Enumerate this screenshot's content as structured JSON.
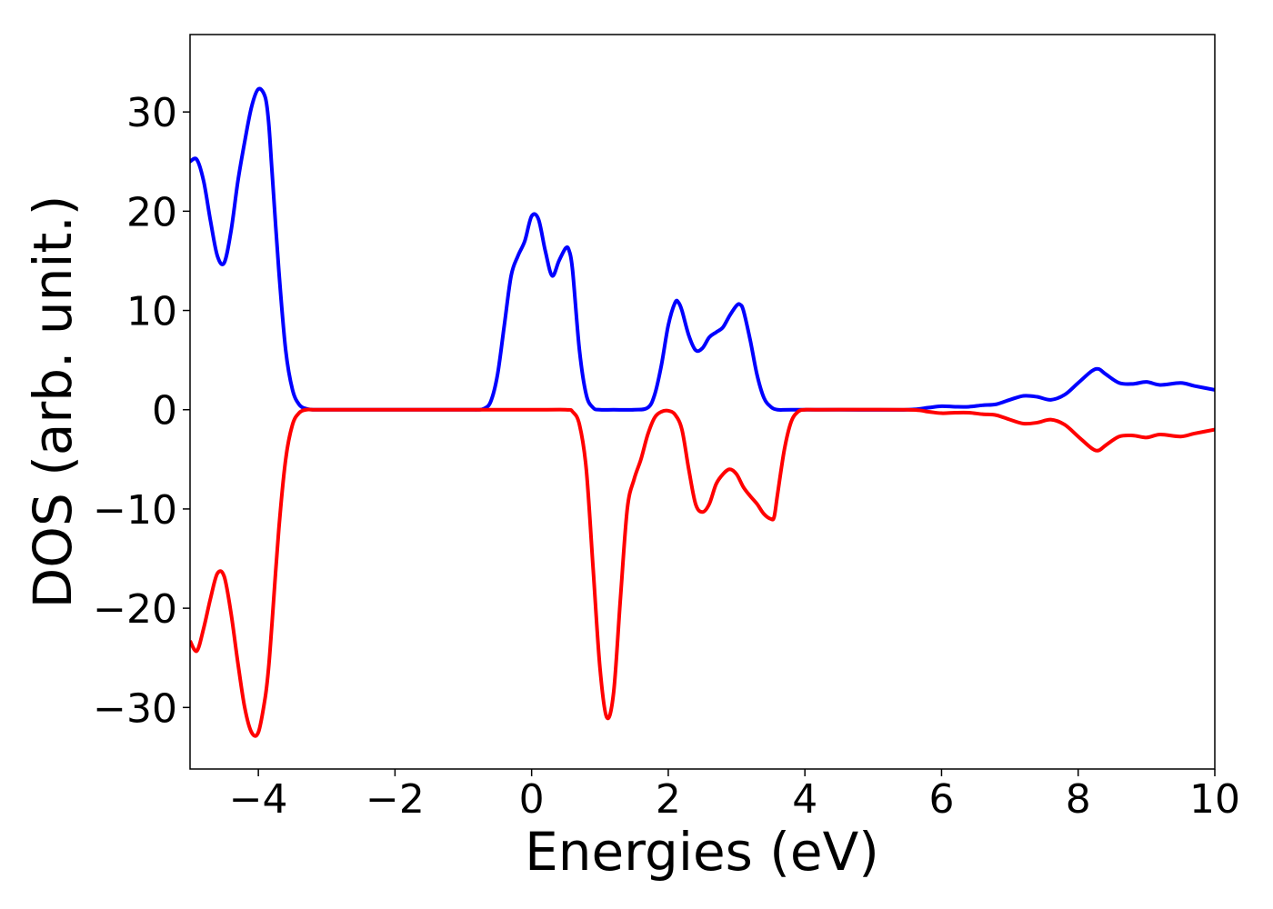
{
  "chart_data": {
    "type": "line",
    "title": "",
    "xlabel": "Energies (eV)",
    "ylabel": "DOS (arb. unit.)",
    "xlim": [
      -5,
      10
    ],
    "ylim": [
      -36.2,
      37.8
    ],
    "xticks": [
      -4,
      -2,
      0,
      2,
      4,
      6,
      8,
      10
    ],
    "xtick_labels": [
      "−4",
      "−2",
      "0",
      "2",
      "4",
      "6",
      "8",
      "10"
    ],
    "yticks": [
      30,
      20,
      10,
      0,
      -10,
      -20,
      -30
    ],
    "ytick_labels": [
      "30",
      "20",
      "10",
      "0",
      "−10",
      "−20",
      "−30"
    ],
    "grid": false,
    "legend": "none",
    "series": [
      {
        "color": "#0000ff",
        "x": [
          -5.0,
          -4.9,
          -4.8,
          -4.7,
          -4.6,
          -4.5,
          -4.4,
          -4.3,
          -4.2,
          -4.1,
          -4.0,
          -3.9,
          -3.85,
          -3.8,
          -3.7,
          -3.6,
          -3.5,
          -3.4,
          -3.3,
          -3.2,
          -3.1,
          -3.0,
          -2.5,
          -1.0,
          -0.8,
          -0.7,
          -0.6,
          -0.5,
          -0.4,
          -0.3,
          -0.2,
          -0.1,
          0.0,
          0.1,
          0.2,
          0.3,
          0.4,
          0.5,
          0.55,
          0.6,
          0.7,
          0.8,
          0.9,
          1.0,
          1.2,
          1.5,
          1.7,
          1.8,
          1.9,
          2.0,
          2.1,
          2.15,
          2.2,
          2.3,
          2.4,
          2.5,
          2.6,
          2.7,
          2.8,
          2.9,
          3.0,
          3.05,
          3.1,
          3.2,
          3.3,
          3.4,
          3.5,
          3.6,
          3.8,
          4.5,
          5.5,
          5.8,
          6.0,
          6.2,
          6.4,
          6.6,
          6.8,
          7.0,
          7.2,
          7.4,
          7.6,
          7.8,
          8.0,
          8.2,
          8.3,
          8.4,
          8.6,
          8.8,
          9.0,
          9.2,
          9.5,
          9.7,
          10.0
        ],
        "y": [
          25.0,
          25.2,
          23.0,
          19.0,
          15.5,
          14.8,
          18.0,
          23.0,
          27.0,
          30.5,
          32.3,
          31.5,
          29.0,
          24.0,
          14.0,
          6.0,
          2.0,
          0.5,
          0.1,
          0.0,
          0.0,
          0.0,
          0.0,
          0.0,
          0.0,
          0.1,
          0.8,
          3.5,
          8.5,
          13.5,
          15.5,
          17.0,
          19.5,
          19.2,
          16.0,
          13.5,
          15.0,
          16.3,
          16.0,
          14.0,
          6.0,
          1.5,
          0.2,
          0.0,
          0.0,
          0.0,
          0.2,
          1.5,
          4.5,
          8.5,
          10.8,
          10.8,
          10.0,
          7.5,
          6.0,
          6.2,
          7.3,
          7.8,
          8.3,
          9.5,
          10.5,
          10.6,
          10.0,
          7.0,
          3.5,
          1.2,
          0.3,
          0.0,
          0.0,
          0.0,
          0.0,
          0.2,
          0.35,
          0.3,
          0.3,
          0.45,
          0.55,
          1.0,
          1.4,
          1.3,
          1.0,
          1.5,
          2.7,
          3.9,
          4.1,
          3.6,
          2.7,
          2.6,
          2.8,
          2.5,
          2.7,
          2.4,
          2.0
        ]
      },
      {
        "color": "#ff0000",
        "x": [
          -5.0,
          -4.9,
          -4.8,
          -4.7,
          -4.6,
          -4.5,
          -4.4,
          -4.3,
          -4.2,
          -4.1,
          -4.0,
          -3.9,
          -3.85,
          -3.8,
          -3.7,
          -3.6,
          -3.5,
          -3.4,
          -3.3,
          -3.2,
          -3.1,
          -3.0,
          -2.5,
          0.0,
          0.5,
          0.6,
          0.7,
          0.8,
          0.9,
          1.0,
          1.1,
          1.2,
          1.3,
          1.4,
          1.5,
          1.6,
          1.7,
          1.8,
          1.9,
          2.0,
          2.1,
          2.2,
          2.3,
          2.4,
          2.5,
          2.6,
          2.7,
          2.8,
          2.9,
          3.0,
          3.1,
          3.2,
          3.3,
          3.4,
          3.5,
          3.55,
          3.6,
          3.7,
          3.8,
          3.9,
          4.0,
          4.2,
          5.5,
          5.8,
          6.0,
          6.2,
          6.4,
          6.6,
          6.8,
          7.0,
          7.2,
          7.4,
          7.6,
          7.8,
          8.0,
          8.2,
          8.3,
          8.4,
          8.6,
          8.8,
          9.0,
          9.2,
          9.5,
          9.7,
          10.0
        ],
        "y": [
          -23.3,
          -24.3,
          -22.0,
          -19.0,
          -16.5,
          -16.8,
          -20.5,
          -25.5,
          -30.0,
          -32.5,
          -32.5,
          -29.0,
          -26.0,
          -21.5,
          -12.0,
          -5.0,
          -1.5,
          -0.3,
          0.0,
          0.0,
          0.0,
          0.0,
          0.0,
          0.0,
          0.0,
          -0.2,
          -1.5,
          -6.0,
          -16.0,
          -26.0,
          -31.0,
          -28.5,
          -19.0,
          -10.0,
          -7.0,
          -5.0,
          -2.5,
          -0.8,
          -0.2,
          -0.1,
          -0.5,
          -2.0,
          -6.0,
          -9.5,
          -10.3,
          -9.5,
          -7.5,
          -6.5,
          -6.0,
          -6.5,
          -7.8,
          -8.7,
          -9.5,
          -10.5,
          -11.0,
          -10.8,
          -8.5,
          -4.0,
          -1.2,
          -0.2,
          0.0,
          0.0,
          0.0,
          -0.2,
          -0.35,
          -0.3,
          -0.3,
          -0.45,
          -0.55,
          -1.0,
          -1.4,
          -1.3,
          -1.0,
          -1.5,
          -2.7,
          -3.9,
          -4.1,
          -3.6,
          -2.7,
          -2.6,
          -2.8,
          -2.5,
          -2.7,
          -2.4,
          -2.0
        ]
      }
    ]
  }
}
